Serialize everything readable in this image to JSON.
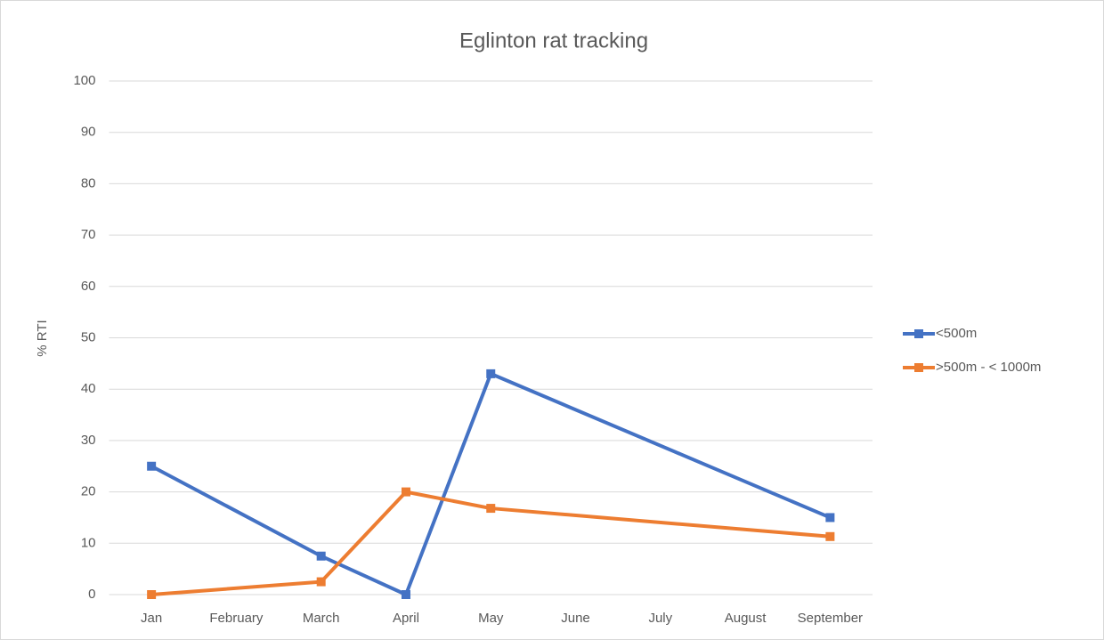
{
  "chart_data": {
    "type": "line",
    "title": "Eglinton rat tracking",
    "y_label": "% RTI",
    "categories": [
      "Jan",
      "February",
      "March",
      "April",
      "May",
      "June",
      "July",
      "August",
      "September"
    ],
    "series": [
      {
        "name": "<500m",
        "color": "#4472c4",
        "values": [
          25,
          null,
          7.5,
          0,
          43,
          null,
          null,
          null,
          15
        ]
      },
      {
        "name": ">500m - < 1000m",
        "color": "#ed7d31",
        "values": [
          0,
          null,
          2.5,
          20,
          16.8,
          null,
          null,
          null,
          11.3
        ]
      }
    ],
    "ylim": [
      0,
      100
    ],
    "yticks": [
      0,
      10,
      20,
      30,
      40,
      50,
      60,
      70,
      80,
      90,
      100
    ],
    "grid": true,
    "legend": "right"
  }
}
